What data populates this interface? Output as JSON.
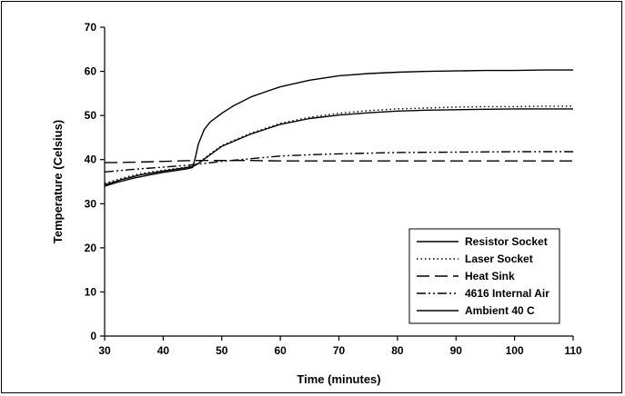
{
  "chart_data": {
    "type": "line",
    "title": "",
    "xlabel": "Time (minutes)",
    "ylabel": "Temperature (Celsius)",
    "xlim": [
      30,
      110
    ],
    "ylim": [
      0,
      70
    ],
    "xticks": [
      30,
      40,
      50,
      60,
      70,
      80,
      90,
      100,
      110
    ],
    "yticks": [
      0,
      10,
      20,
      30,
      40,
      50,
      60,
      70
    ],
    "grid": false,
    "legend_position": "bottom-right",
    "series": [
      {
        "name": "Resistor Socket",
        "dash": "solid",
        "x": [
          30,
          32,
          35,
          38,
          40,
          42,
          44,
          45,
          45.5,
          46,
          47,
          48,
          50,
          52,
          55,
          58,
          60,
          65,
          70,
          75,
          80,
          85,
          90,
          95,
          100,
          105,
          110
        ],
        "y": [
          34,
          34.8,
          35.8,
          36.6,
          37.1,
          37.5,
          37.9,
          38.2,
          40.5,
          43.5,
          46.8,
          48.5,
          50.5,
          52.2,
          54.2,
          55.6,
          56.5,
          58,
          59,
          59.5,
          59.8,
          60,
          60.1,
          60.2,
          60.2,
          60.3,
          60.3
        ]
      },
      {
        "name": "Laser Socket",
        "dash": "dotted",
        "x": [
          30,
          33,
          36,
          40,
          43,
          45,
          46,
          48,
          50,
          55,
          60,
          65,
          70,
          75,
          80,
          85,
          90,
          95,
          100,
          105,
          110
        ],
        "y": [
          34.6,
          35.8,
          36.8,
          37.6,
          38.1,
          38.5,
          39.2,
          41.3,
          43.2,
          46,
          48.2,
          49.6,
          50.5,
          51.1,
          51.5,
          51.7,
          51.9,
          52,
          52,
          52.1,
          52.1
        ]
      },
      {
        "name": "Heat Sink",
        "dash": "long-dash",
        "x": [
          30,
          35,
          40,
          45,
          50,
          55,
          60,
          70,
          80,
          90,
          100,
          110
        ],
        "y": [
          39.3,
          39.4,
          39.6,
          39.8,
          39.8,
          39.8,
          39.7,
          39.7,
          39.7,
          39.7,
          39.7,
          39.7
        ]
      },
      {
        "name": "4616 Internal Air",
        "dash": "dash-dot-dot",
        "x": [
          30,
          35,
          40,
          45,
          50,
          55,
          60,
          65,
          70,
          80,
          90,
          100,
          110
        ],
        "y": [
          37.2,
          37.8,
          38.3,
          38.8,
          39.6,
          40.2,
          40.8,
          41.1,
          41.3,
          41.6,
          41.7,
          41.8,
          41.8
        ]
      },
      {
        "name": "Ambient 40 C",
        "dash": "solid",
        "x": [
          30,
          33,
          36,
          40,
          43,
          45,
          46,
          48,
          50,
          55,
          60,
          65,
          70,
          75,
          80,
          85,
          90,
          95,
          100,
          105,
          110
        ],
        "y": [
          34.3,
          35.5,
          36.5,
          37.4,
          38,
          38.4,
          39.1,
          41.1,
          43,
          45.8,
          48,
          49.3,
          50.1,
          50.6,
          51,
          51.2,
          51.3,
          51.4,
          51.5,
          51.5,
          51.5
        ]
      }
    ]
  }
}
